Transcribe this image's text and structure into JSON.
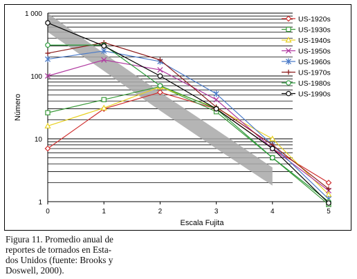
{
  "chart_data": {
    "type": "line",
    "title": "",
    "xlabel": "Escala Fujita",
    "ylabel": "Número",
    "x": [
      0,
      1,
      2,
      3,
      4,
      5
    ],
    "xlim": [
      0,
      5
    ],
    "ylim": [
      1,
      1000
    ],
    "y_scale": "log",
    "y_tick_labels": [
      "1",
      "10",
      "100",
      "1 000"
    ],
    "x_tick_labels": [
      "0",
      "1",
      "2",
      "3",
      "4",
      "5"
    ],
    "grid": "horizontal",
    "legend_position": "top-right",
    "band": {
      "description": "gray shaded band",
      "upper": [
        1000,
        230,
        55,
        14,
        3.5
      ],
      "lower": [
        500,
        120,
        28,
        7,
        1.8
      ],
      "x": [
        0,
        1,
        2,
        3,
        4
      ]
    },
    "series": [
      {
        "name": "US-1920s",
        "color": "#d03030",
        "marker": "diamond",
        "values": [
          7,
          30,
          55,
          30,
          7,
          2
        ]
      },
      {
        "name": "US-1930s",
        "color": "#3a9a3a",
        "marker": "square",
        "values": [
          26,
          42,
          68,
          27,
          5,
          0.9
        ]
      },
      {
        "name": "US-1940s",
        "color": "#e8d020",
        "marker": "triangle",
        "values": [
          16,
          31,
          67,
          31,
          10,
          1.3
        ]
      },
      {
        "name": "US-1950s",
        "color": "#b03aa0",
        "marker": "x",
        "values": [
          100,
          180,
          125,
          42,
          7,
          1.5
        ]
      },
      {
        "name": "US-1960s",
        "color": "#4a7ac8",
        "marker": "star",
        "values": [
          185,
          250,
          170,
          52,
          8,
          1.1
        ]
      },
      {
        "name": "US-1970s",
        "color": "#8a1a1a",
        "marker": "plus",
        "values": [
          230,
          340,
          180,
          32,
          8,
          1.6
        ]
      },
      {
        "name": "US-1980s",
        "color": "#2a9a3a",
        "marker": "circle",
        "values": [
          310,
          310,
          70,
          30,
          5,
          1
        ]
      },
      {
        "name": "US-1990s",
        "color": "#000000",
        "marker": "circle",
        "values": [
          700,
          300,
          100,
          30,
          7,
          0.95
        ]
      }
    ]
  },
  "caption": "Figura 11. Promedio anual de\nreportes de tornados en Esta-\ndos Unidos (fuente: Brooks y\nDoswell, 2000)."
}
